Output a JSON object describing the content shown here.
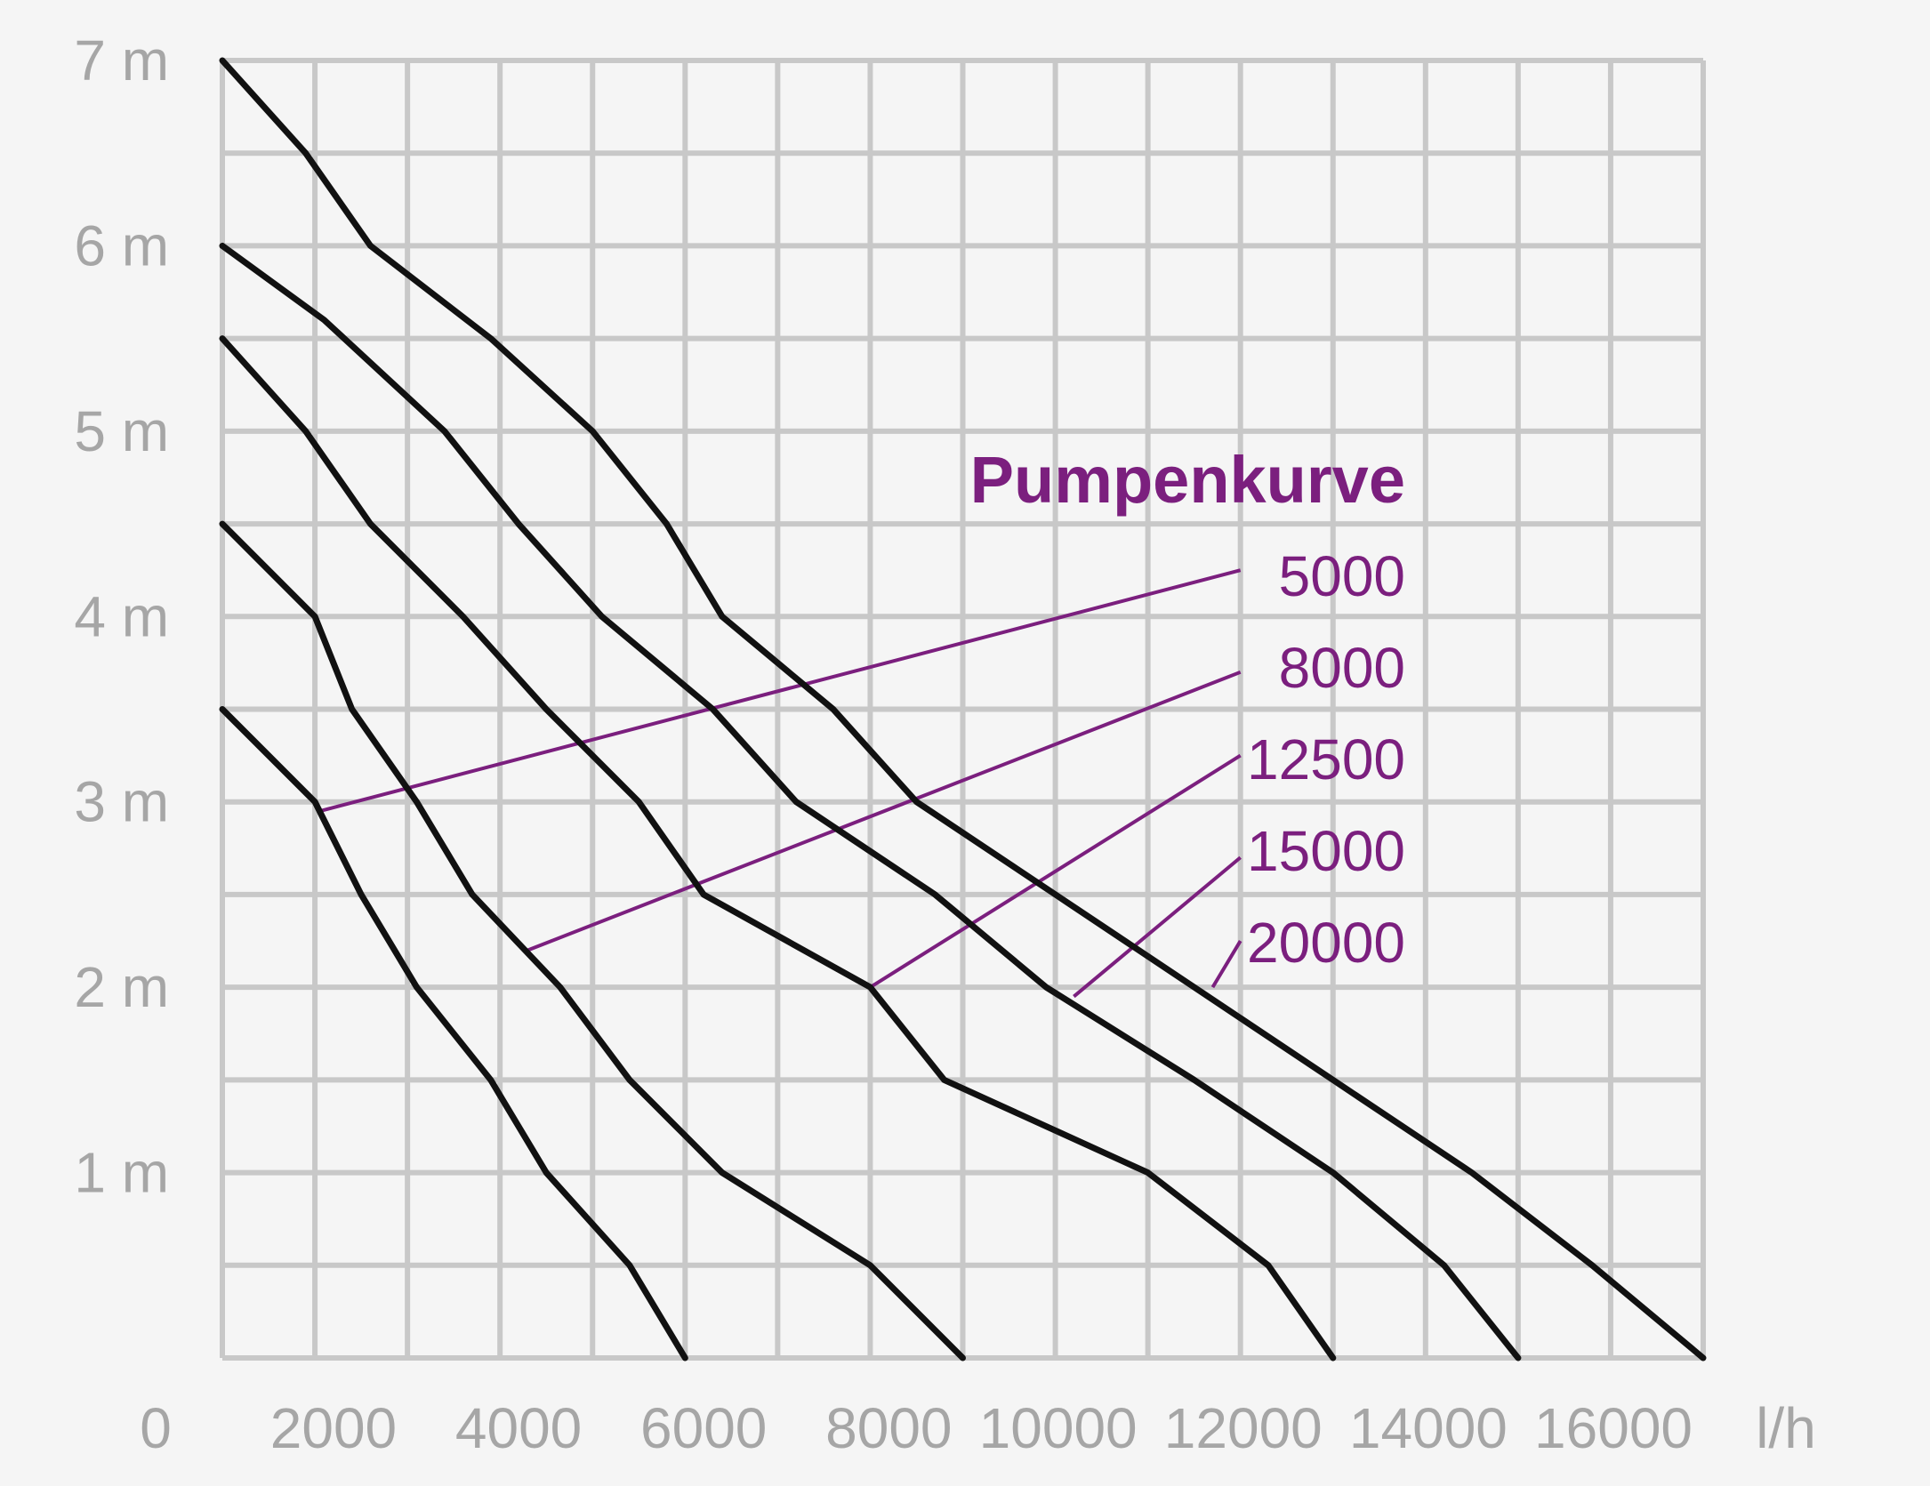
{
  "chart_data": {
    "type": "line",
    "legend": {
      "title": "Pumpenkurve",
      "placement": "right",
      "labels": [
        "5000",
        "8000",
        "12500",
        "15000",
        "20000"
      ]
    },
    "x_unit_label": "l/h",
    "origin_label": "0",
    "x_ticks": [
      "2000",
      "4000",
      "6000",
      "8000",
      "10000",
      "12000",
      "14000",
      "16000"
    ],
    "y_ticks": [
      "1 m",
      "2 m",
      "3 m",
      "4 m",
      "5 m",
      "6 m",
      "7 m"
    ],
    "xlim": [
      0,
      16000
    ],
    "ylim": [
      0,
      7
    ],
    "grid": true,
    "colors": {
      "curve": "#111111",
      "grid": "#c8c8c8",
      "leader": "#7b1f7e",
      "tick": "#a6a6a6"
    },
    "series": [
      {
        "name": "5000",
        "points": [
          [
            0,
            3.5
          ],
          [
            1000,
            3.0
          ],
          [
            1500,
            2.5
          ],
          [
            2100,
            2.0
          ],
          [
            2900,
            1.5
          ],
          [
            3500,
            1.0
          ],
          [
            4400,
            0.5
          ],
          [
            5000,
            0.0
          ]
        ]
      },
      {
        "name": "8000",
        "points": [
          [
            0,
            4.5
          ],
          [
            1000,
            4.0
          ],
          [
            1400,
            3.5
          ],
          [
            2100,
            3.0
          ],
          [
            2700,
            2.5
          ],
          [
            3650,
            2.0
          ],
          [
            4400,
            1.5
          ],
          [
            5400,
            1.0
          ],
          [
            7000,
            0.5
          ],
          [
            8000,
            0.0
          ]
        ]
      },
      {
        "name": "12500",
        "points": [
          [
            0,
            5.5
          ],
          [
            900,
            5.0
          ],
          [
            1600,
            4.5
          ],
          [
            2600,
            4.0
          ],
          [
            3500,
            3.5
          ],
          [
            4500,
            3.0
          ],
          [
            5200,
            2.5
          ],
          [
            7000,
            2.0
          ],
          [
            7800,
            1.5
          ],
          [
            10000,
            1.0
          ],
          [
            11300,
            0.5
          ],
          [
            12000,
            0.0
          ]
        ]
      },
      {
        "name": "15000",
        "points": [
          [
            0,
            6.0
          ],
          [
            1100,
            5.6
          ],
          [
            2400,
            5.0
          ],
          [
            3200,
            4.5
          ],
          [
            4100,
            4.0
          ],
          [
            5300,
            3.5
          ],
          [
            6200,
            3.0
          ],
          [
            7700,
            2.5
          ],
          [
            8900,
            2.0
          ],
          [
            10500,
            1.5
          ],
          [
            12000,
            1.0
          ],
          [
            13200,
            0.5
          ],
          [
            14000,
            0.0
          ]
        ]
      },
      {
        "name": "20000",
        "points": [
          [
            0,
            7.0
          ],
          [
            900,
            6.5
          ],
          [
            1600,
            6.0
          ],
          [
            2900,
            5.5
          ],
          [
            4000,
            5.0
          ],
          [
            4800,
            4.5
          ],
          [
            5400,
            4.0
          ],
          [
            6600,
            3.5
          ],
          [
            7500,
            3.0
          ],
          [
            9000,
            2.5
          ],
          [
            10500,
            2.0
          ],
          [
            12000,
            1.5
          ],
          [
            13500,
            1.0
          ],
          [
            14800,
            0.5
          ],
          [
            16000,
            0.0
          ]
        ]
      }
    ],
    "leader_lines": [
      {
        "series": "5000",
        "from": [
          1050,
          2.95
        ],
        "to": [
          11000,
          4.25
        ]
      },
      {
        "series": "8000",
        "from": [
          3300,
          2.2
        ],
        "to": [
          11000,
          3.7
        ]
      },
      {
        "series": "12500",
        "from": [
          7000,
          2.0
        ],
        "to": [
          11000,
          3.25
        ]
      },
      {
        "series": "15000",
        "from": [
          9200,
          1.95
        ],
        "to": [
          11000,
          2.7
        ]
      },
      {
        "series": "20000",
        "from": [
          10700,
          2.0
        ],
        "to": [
          11000,
          2.25
        ]
      }
    ]
  }
}
